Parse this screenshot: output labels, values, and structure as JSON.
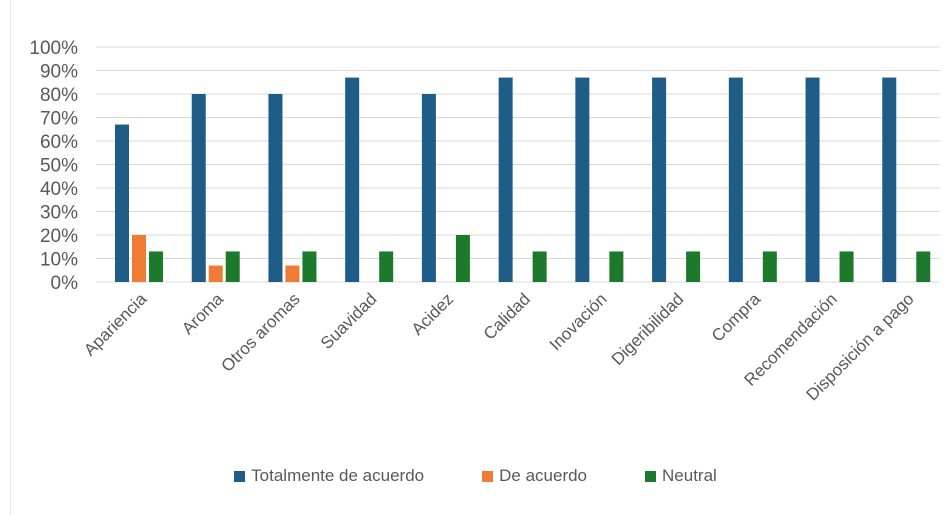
{
  "chart_data": {
    "type": "bar",
    "categories": [
      "Apariencia",
      "Aroma",
      "Otros aromas",
      "Suavidad",
      "Acidez",
      "Calidad",
      "Inovación",
      "Digeribilidad",
      "Compra",
      "Recomendación",
      "Disposición a pago"
    ],
    "series": [
      {
        "name": "Totalmente de acuerdo",
        "color": "#1f5c87",
        "values": [
          0.67,
          0.8,
          0.8,
          0.87,
          0.8,
          0.87,
          0.87,
          0.87,
          0.87,
          0.87,
          0.87
        ]
      },
      {
        "name": "De acuerdo",
        "color": "#f07b34",
        "values": [
          0.2,
          0.07,
          0.07,
          0,
          0,
          0,
          0,
          0,
          0,
          0,
          0
        ]
      },
      {
        "name": "Neutral",
        "color": "#1d7a2d",
        "values": [
          0.13,
          0.13,
          0.13,
          0.13,
          0.2,
          0.13,
          0.13,
          0.13,
          0.13,
          0.13,
          0.13
        ]
      }
    ],
    "ylim": [
      0,
      1
    ],
    "yticks": [
      "0%",
      "10%",
      "20%",
      "30%",
      "40%",
      "50%",
      "60%",
      "70%",
      "80%",
      "90%",
      "100%"
    ],
    "grid": true,
    "legend_position": "bottom"
  }
}
